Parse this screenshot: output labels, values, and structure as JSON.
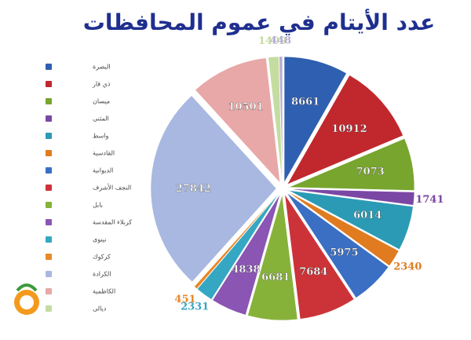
{
  "chart_data": {
    "type": "pie",
    "title": "عدد الأيتام في عموم المحافظات",
    "categories": [
      "البصرة",
      "ذي قار",
      "ميسان",
      "المثنى",
      "واسط",
      "القادسية",
      "الديوانية",
      "النجف الأشرف",
      "بابل",
      "كربلاء المقدسة",
      "نينوى",
      "كركوك",
      "الكرادة",
      "الكاظمية",
      "ديالى",
      null
    ],
    "values": [
      8661,
      10912,
      7073,
      1741,
      6014,
      2340,
      5975,
      7684,
      6681,
      4838,
      2331,
      451,
      27842,
      10501,
      1409,
      448
    ],
    "colors": [
      "#2f5fb0",
      "#c0282e",
      "#78a52e",
      "#7b47a4",
      "#2b9ab5",
      "#e07b1f",
      "#3a6fc4",
      "#cc3338",
      "#86b23a",
      "#8a55b3",
      "#36a7c2",
      "#e8892a",
      "#a8b8e0",
      "#e8a8a8",
      "#c4dca0",
      "#b8acd4"
    ],
    "legend": "left"
  }
}
